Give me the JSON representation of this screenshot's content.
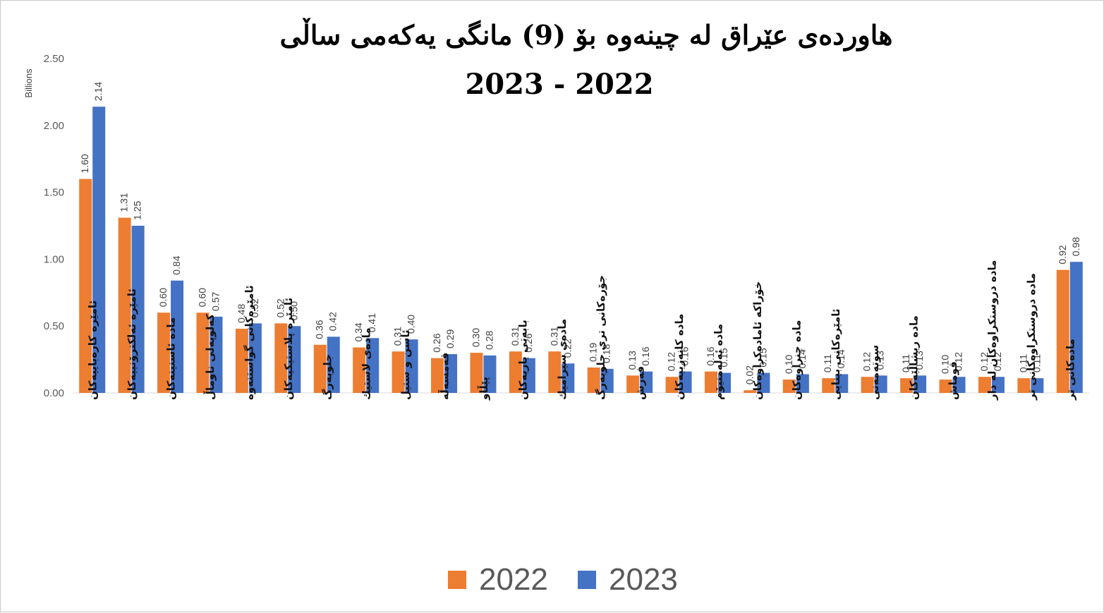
{
  "chart_data": {
    "type": "bar",
    "title": "هاوردەی عێراق لە چینەوە بۆ (9) مانگی یەکەمی ساڵی",
    "subtitle": "2023  -  2022",
    "ylabel": "Billions",
    "xlabel": "",
    "ylim": [
      0,
      2.5
    ],
    "y_ticks": [
      "0.00",
      "0.50",
      "1.00",
      "1.50",
      "2.00",
      "2.50"
    ],
    "y_tick_values": [
      0,
      0.5,
      1.0,
      1.5,
      2.0,
      2.5
    ],
    "grid": false,
    "legend_position": "bottom",
    "categories": [
      "ئامێرە کارەباییەکان",
      "ئامێرە ئەلکترۆنییەکان",
      "مادە ئاسنینەکان",
      "کەلوپەلی ناوماڵ",
      "ئامێرەکانی گواستنەوە",
      "ئامێرە پلاستیکیەکان",
      "جلوبەرگ",
      "مادەی لاستیك",
      "ئاسن و ستیل",
      "قەمسەڵە",
      "پێڵاو",
      "بابەتی یاریەکان",
      "مادەی سیرامیك",
      "جۆرەکانی تری جلوبەرگ",
      "فەرش",
      "مادە کانەزییەکان",
      "مادە ئەلەمنیۆم",
      "خۆراکە ئامادەکراوەکان",
      "مادە چنراوەکان",
      "ئامێرەکانی بینایی",
      "سوتەمەنی",
      "مادە ریشاڵێەکان",
      "قوماش",
      "مادە دروستکراوەکان لە دار",
      "مادە دروستکراوەکانی تر",
      "مادەکانی تر"
    ],
    "series": [
      {
        "name": "2022",
        "color": "#ED7D31",
        "values": [
          1.6,
          1.31,
          0.6,
          0.6,
          0.48,
          0.52,
          0.36,
          0.34,
          0.31,
          0.26,
          0.3,
          0.31,
          0.31,
          0.19,
          0.13,
          0.12,
          0.16,
          0.02,
          0.1,
          0.11,
          0.12,
          0.11,
          0.1,
          0.12,
          0.11,
          0.92
        ],
        "labels": [
          "1.60",
          "1.31",
          "0.60",
          "0.60",
          "0.48",
          "0.52",
          "0.36",
          "0.34",
          "0.31",
          "0.26",
          "0.30",
          "0.31",
          "0.31",
          "0.19",
          "0.13",
          "0.12",
          "0.16",
          "0.02",
          "0.10",
          "0.11",
          "0.12",
          "0.11",
          "0.10",
          "0.12",
          "0.11",
          "0.92"
        ]
      },
      {
        "name": "2023",
        "color": "#4472C4",
        "values": [
          2.14,
          1.25,
          0.84,
          0.57,
          0.52,
          0.5,
          0.42,
          0.41,
          0.4,
          0.29,
          0.28,
          0.26,
          0.22,
          0.18,
          0.16,
          0.16,
          0.15,
          0.15,
          0.14,
          0.14,
          0.13,
          0.13,
          0.12,
          0.12,
          0.11,
          0.98
        ],
        "labels": [
          "2.14",
          "1.25",
          "0.84",
          "0.57",
          "0.52",
          "0.50",
          "0.42",
          "0.41",
          "0.40",
          "0.29",
          "0.28",
          "0.26",
          "0.22",
          "0.18",
          "0.16",
          "0.16",
          "0.15",
          "0.15",
          "0.14",
          "0.14",
          "0.13",
          "0.13",
          "0.12",
          "0.12",
          "0.11",
          "0.98"
        ]
      }
    ]
  }
}
